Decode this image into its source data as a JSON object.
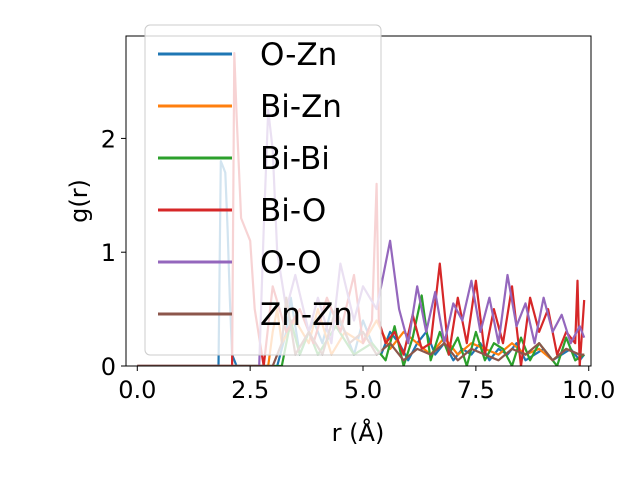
{
  "chart_data": {
    "type": "line",
    "xlabel": "r (Å)",
    "ylabel": "g(r)",
    "xlim": [
      -0.25,
      10.05
    ],
    "ylim": [
      0,
      2.9
    ],
    "xticks": [
      0.0,
      2.5,
      5.0,
      7.5,
      10.0
    ],
    "xtick_labels": [
      "0.0",
      "2.5",
      "5.0",
      "7.5",
      "10.0"
    ],
    "yticks": [
      0,
      1,
      2
    ],
    "ytick_labels": [
      "0",
      "1",
      "2"
    ],
    "grid": false,
    "legend_position": "upper-left",
    "series": [
      {
        "name": "O-Zn",
        "color": "#1f77b4",
        "x": [
          0.0,
          1.8,
          1.85,
          1.9,
          1.95,
          2.0,
          2.05,
          2.1,
          2.2,
          2.6,
          3.1,
          3.3,
          3.4,
          3.6,
          3.9,
          4.1,
          4.3,
          4.6,
          4.8,
          5.0,
          5.2,
          5.4,
          5.6,
          5.8,
          6.0,
          6.2,
          6.4,
          6.6,
          6.8,
          7.0,
          7.2,
          7.4,
          7.6,
          7.8,
          8.0,
          8.2,
          8.4,
          8.6,
          8.8,
          9.0,
          9.2,
          9.4,
          9.6,
          9.8,
          9.9
        ],
        "y": [
          0.0,
          0.0,
          1.8,
          1.75,
          1.7,
          1.2,
          0.6,
          0.1,
          0.0,
          0.0,
          0.0,
          0.3,
          0.6,
          0.1,
          0.4,
          0.2,
          0.5,
          0.3,
          0.1,
          0.4,
          0.2,
          0.1,
          0.3,
          0.2,
          0.05,
          0.2,
          0.3,
          0.1,
          0.2,
          0.05,
          0.15,
          0.1,
          0.2,
          0.05,
          0.15,
          0.1,
          0.2,
          0.05,
          0.1,
          0.15,
          0.05,
          0.1,
          0.15,
          0.05,
          0.1
        ]
      },
      {
        "name": "Bi-Zn",
        "color": "#ff7f0e",
        "x": [
          0.0,
          2.9,
          3.0,
          3.1,
          3.2,
          3.5,
          3.8,
          4.0,
          4.3,
          4.6,
          5.0,
          5.3,
          5.6,
          5.9,
          6.2,
          6.5,
          6.8,
          7.1,
          7.4,
          7.7,
          8.0,
          8.3,
          8.6,
          8.9,
          9.2,
          9.5,
          9.8,
          9.9
        ],
        "y": [
          0.0,
          0.0,
          0.3,
          0.5,
          0.2,
          0.4,
          0.2,
          0.5,
          0.1,
          0.3,
          0.2,
          0.4,
          0.15,
          0.3,
          0.2,
          0.1,
          0.25,
          0.1,
          0.2,
          0.15,
          0.1,
          0.2,
          0.1,
          0.15,
          0.05,
          0.15,
          0.1,
          0.1
        ]
      },
      {
        "name": "Bi-Bi",
        "color": "#2ca02c",
        "x": [
          0.0,
          3.2,
          3.4,
          3.6,
          3.8,
          4.0,
          4.4,
          4.8,
          5.2,
          5.5,
          5.7,
          5.9,
          6.1,
          6.3,
          6.5,
          6.7,
          6.9,
          7.1,
          7.3,
          7.5,
          7.7,
          7.9,
          8.1,
          8.3,
          8.5,
          8.7,
          8.9,
          9.1,
          9.3,
          9.5,
          9.7,
          9.9
        ],
        "y": [
          0.0,
          0.0,
          0.4,
          0.1,
          0.3,
          0.1,
          0.35,
          0.1,
          0.2,
          0.05,
          0.35,
          0.0,
          0.25,
          0.62,
          0.05,
          0.3,
          0.1,
          0.25,
          0.0,
          0.3,
          0.05,
          0.2,
          0.15,
          0.0,
          0.25,
          0.05,
          0.2,
          0.1,
          0.0,
          0.25,
          0.05,
          0.1
        ]
      },
      {
        "name": "Bi-O",
        "color": "#d62728",
        "x": [
          0.0,
          2.1,
          2.15,
          2.2,
          2.3,
          2.4,
          2.5,
          2.6,
          2.8,
          3.0,
          3.3,
          3.6,
          3.9,
          4.2,
          4.5,
          4.8,
          5.0,
          5.2,
          5.3,
          5.35,
          5.5,
          5.7,
          5.9,
          6.1,
          6.3,
          6.5,
          6.7,
          6.9,
          7.1,
          7.3,
          7.5,
          7.7,
          7.9,
          8.1,
          8.3,
          8.5,
          8.7,
          8.9,
          9.1,
          9.3,
          9.5,
          9.7,
          9.75,
          9.8,
          9.9
        ],
        "y": [
          0.0,
          0.0,
          2.75,
          2.2,
          1.3,
          1.2,
          1.1,
          0.5,
          0.0,
          0.7,
          0.3,
          0.5,
          0.2,
          0.6,
          0.3,
          0.8,
          0.2,
          0.4,
          1.6,
          0.4,
          0.2,
          0.3,
          0.1,
          0.45,
          0.15,
          0.2,
          0.9,
          0.1,
          0.6,
          0.2,
          0.75,
          0.1,
          0.5,
          0.2,
          0.7,
          0.0,
          0.6,
          0.3,
          0.5,
          0.1,
          0.3,
          0.2,
          0.75,
          0.0,
          0.58
        ]
      },
      {
        "name": "O-O",
        "color": "#9467bd",
        "x": [
          0.0,
          2.7,
          2.8,
          2.9,
          3.0,
          3.1,
          3.3,
          3.5,
          3.8,
          4.0,
          4.3,
          4.5,
          4.8,
          5.0,
          5.3,
          5.6,
          5.8,
          6.0,
          6.2,
          6.4,
          6.6,
          6.8,
          7.0,
          7.2,
          7.4,
          7.6,
          7.8,
          8.0,
          8.2,
          8.4,
          8.6,
          8.8,
          9.0,
          9.2,
          9.4,
          9.6,
          9.8,
          9.9
        ],
        "y": [
          0.0,
          0.0,
          1.2,
          2.25,
          1.9,
          1.0,
          0.5,
          0.8,
          0.3,
          0.6,
          0.2,
          0.9,
          0.4,
          0.7,
          0.5,
          1.1,
          0.5,
          0.2,
          0.7,
          0.3,
          0.65,
          0.2,
          0.55,
          0.4,
          0.75,
          0.3,
          0.6,
          0.2,
          0.8,
          0.35,
          0.55,
          0.2,
          0.6,
          0.3,
          0.45,
          0.2,
          0.35,
          0.25
        ]
      },
      {
        "name": "Zn-Zn",
        "color": "#8c564b",
        "x": [
          0.0,
          3.0,
          3.2,
          3.3,
          3.5,
          3.8,
          4.1,
          4.4,
          4.7,
          5.0,
          5.3,
          5.6,
          5.9,
          6.2,
          6.5,
          6.8,
          7.1,
          7.4,
          7.7,
          8.0,
          8.3,
          8.6,
          8.9,
          9.2,
          9.5,
          9.8,
          9.9
        ],
        "y": [
          0.0,
          0.0,
          0.2,
          0.6,
          0.1,
          0.3,
          0.1,
          0.5,
          0.2,
          0.3,
          0.1,
          0.2,
          0.05,
          0.15,
          0.1,
          0.2,
          0.05,
          0.15,
          0.1,
          0.05,
          0.15,
          0.1,
          0.2,
          0.05,
          0.15,
          0.1,
          0.1
        ]
      }
    ]
  }
}
